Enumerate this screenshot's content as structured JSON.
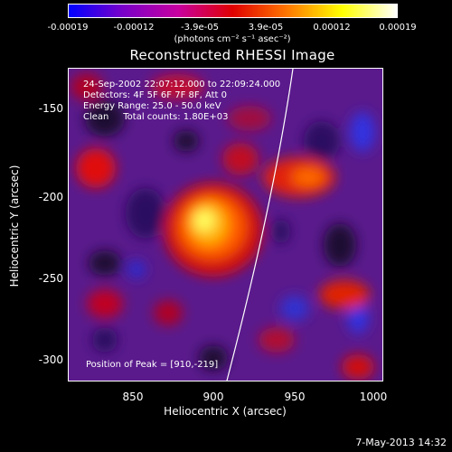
{
  "colorbar": {
    "ticks": [
      "-0.00019",
      "-0.00012",
      "-3.9e-05",
      "3.9e-05",
      "0.00012",
      "0.00019"
    ],
    "unit_label": "(photons cm⁻² s⁻¹ asec⁻²)",
    "colors": [
      "#0000ff",
      "#7a00c8",
      "#c800a0",
      "#e00000",
      "#ff7800",
      "#ffff00",
      "#ffffff"
    ]
  },
  "title": "Reconstructed RHESSI Image",
  "annotations": {
    "time_range": "24-Sep-2002 22:07:12.000 to 22:09:24.000",
    "detectors": "Detectors: 4F 5F 6F 7F 8F, Att 0",
    "energy": "Energy Range: 25.0 - 50.0 keV",
    "clean": "Clean     Total counts: 1.80E+03",
    "peak": "Position of Peak = [910,-219]"
  },
  "axes": {
    "x_label": "Heliocentric X (arcsec)",
    "y_label": "Heliocentric Y (arcsec)",
    "x_ticks": [
      "850",
      "900",
      "950",
      "1000"
    ],
    "y_ticks": [
      "-150",
      "-200",
      "-250",
      "-300"
    ],
    "x_range": [
      808,
      1000
    ],
    "y_range": [
      -318,
      -127
    ]
  },
  "date_stamp": "7-May-2013 14:32"
}
